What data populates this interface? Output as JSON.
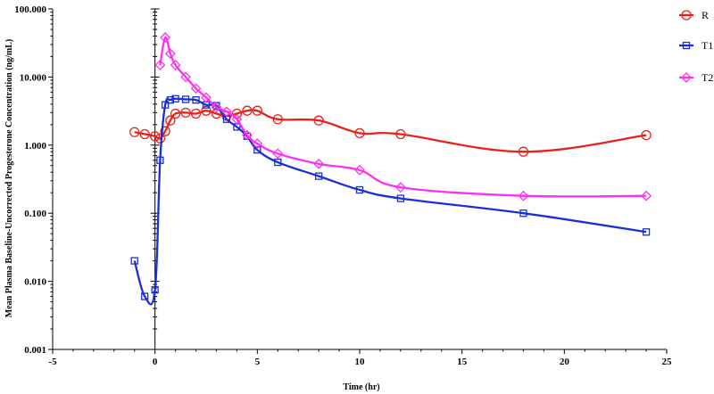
{
  "chart_data": {
    "type": "line",
    "title": "",
    "xlabel": "Time (hr)",
    "ylabel": "Mean Plasma Baseline-Uncorrected Progesterone Concentration (ng/mL)",
    "xlim": [
      -5,
      25
    ],
    "ylim": [
      0.001,
      100
    ],
    "y_scale": "log",
    "grid": false,
    "legend_position": "right",
    "x_ticks": [
      "-5",
      "0",
      "5",
      "10",
      "15",
      "20",
      "25"
    ],
    "y_ticks": [
      "0.001",
      "0.010",
      "0.100",
      "1.000",
      "10.000",
      "100.000"
    ],
    "series": [
      {
        "name": "R",
        "color": "#e8221b",
        "marker": "circle",
        "x": [
          -1,
          -0.5,
          0,
          0.25,
          0.5,
          0.75,
          1,
          1.5,
          2,
          2.5,
          3,
          3.5,
          4,
          4.5,
          5,
          6,
          8,
          10,
          12,
          18,
          24
        ],
        "y": [
          1.55,
          1.45,
          1.35,
          1.25,
          1.6,
          2.3,
          2.9,
          3.0,
          2.9,
          3.2,
          2.9,
          2.7,
          2.9,
          3.2,
          3.2,
          2.4,
          2.3,
          1.5,
          1.45,
          0.8,
          1.4
        ]
      },
      {
        "name": "T1",
        "color": "#1a2fd4",
        "marker": "square",
        "x": [
          -1,
          -0.5,
          0,
          0.25,
          0.5,
          0.75,
          1,
          1.5,
          2,
          2.5,
          3,
          3.5,
          4,
          4.5,
          5,
          6,
          8,
          10,
          12,
          18,
          24
        ],
        "y": [
          0.02,
          0.006,
          0.0075,
          0.6,
          3.9,
          4.6,
          4.8,
          4.7,
          4.6,
          3.9,
          3.8,
          2.4,
          1.85,
          1.35,
          0.85,
          0.56,
          0.35,
          0.22,
          0.165,
          0.1,
          0.053
        ]
      },
      {
        "name": "T2",
        "color": "#ff2ff0",
        "marker": "diamond",
        "x": [
          0.25,
          0.5,
          0.75,
          1,
          1.5,
          2,
          2.5,
          3,
          3.5,
          4,
          4.5,
          5,
          6,
          8,
          10,
          12,
          18,
          24
        ],
        "y": [
          15,
          38,
          22,
          15,
          10,
          6.8,
          5,
          3.6,
          3.1,
          2.4,
          1.4,
          1.05,
          0.75,
          0.53,
          0.43,
          0.24,
          0.18,
          0.18
        ]
      }
    ]
  }
}
